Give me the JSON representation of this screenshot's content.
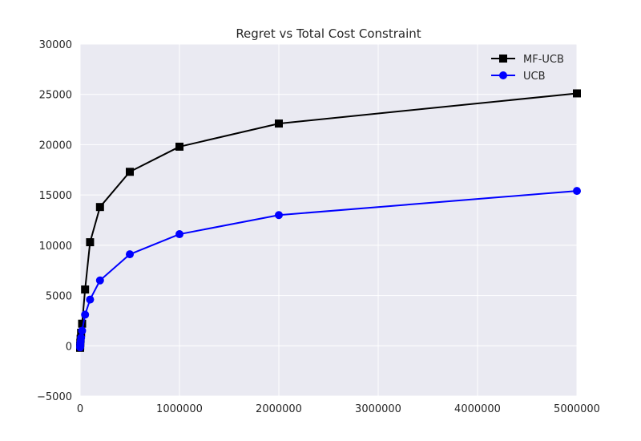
{
  "chart_data": {
    "type": "line",
    "title": "Regret vs Total Cost Constraint",
    "xlabel": "",
    "ylabel": "",
    "xlim": [
      0,
      5000000
    ],
    "ylim": [
      -5000,
      30000
    ],
    "xticks": [
      0,
      1000000,
      2000000,
      3000000,
      4000000,
      5000000
    ],
    "xtick_labels": [
      "0",
      "1000000",
      "2000000",
      "3000000",
      "4000000",
      "5000000"
    ],
    "yticks": [
      -5000,
      0,
      5000,
      10000,
      15000,
      20000,
      25000,
      30000
    ],
    "ytick_labels": [
      "−5000",
      "0",
      "5000",
      "10000",
      "15000",
      "20000",
      "25000",
      "30000"
    ],
    "grid": true,
    "legend_position": "top-right",
    "background_color": "#eaeaf2",
    "series": [
      {
        "name": "MF-UCB",
        "color": "#000000",
        "marker": "square",
        "x": [
          0,
          1000,
          2000,
          5000,
          10000,
          20000,
          50000,
          100000,
          200000,
          500000,
          1000000,
          2000000,
          5000000
        ],
        "y": [
          -200,
          0,
          300,
          700,
          1300,
          2200,
          5600,
          10300,
          13800,
          17300,
          19800,
          22100,
          25100
        ]
      },
      {
        "name": "UCB",
        "color": "#0000ff",
        "marker": "circle",
        "x": [
          0,
          1000,
          2000,
          5000,
          10000,
          20000,
          50000,
          100000,
          200000,
          500000,
          1000000,
          2000000,
          5000000
        ],
        "y": [
          -150,
          0,
          200,
          450,
          800,
          1500,
          3100,
          4600,
          6500,
          9100,
          11100,
          13000,
          15400
        ]
      }
    ]
  }
}
